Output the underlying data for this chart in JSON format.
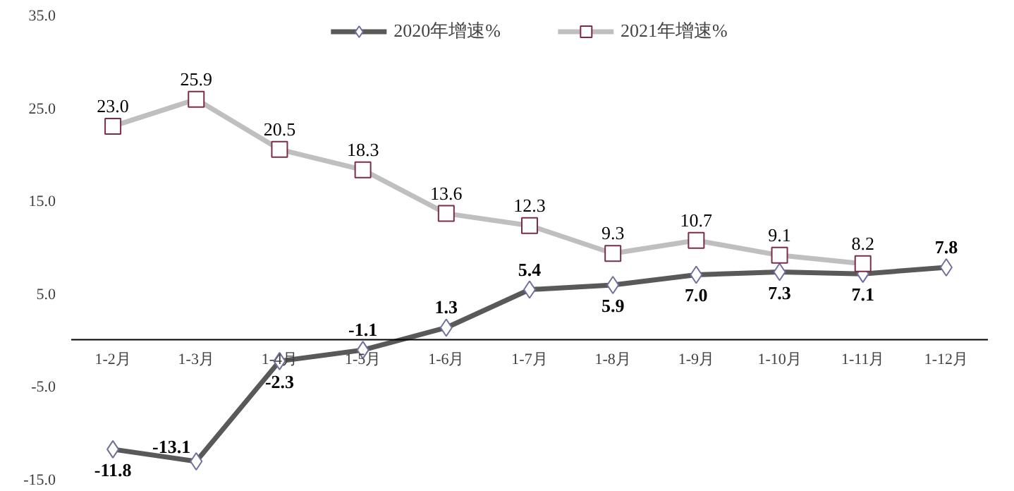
{
  "chart_data": {
    "type": "line",
    "categories": [
      "1-2月",
      "1-3月",
      "1-4月",
      "1-5月",
      "1-6月",
      "1-7月",
      "1-8月",
      "1-9月",
      "1-10月",
      "1-11月",
      "1-12月"
    ],
    "series": [
      {
        "name": "2020年增速%",
        "color": "#595959",
        "marker": "diamond",
        "values": [
          -11.8,
          -13.1,
          -2.3,
          -1.1,
          1.3,
          5.4,
          5.9,
          7.0,
          7.3,
          7.1,
          7.8
        ],
        "value_labels": [
          "-11.8",
          "-13.1",
          "-2.3",
          "-1.1",
          "1.3",
          "5.4",
          "5.9",
          "7.0",
          "7.3",
          "7.1",
          "7.8"
        ]
      },
      {
        "name": "2021年增速%",
        "color": "#bfbfbf",
        "marker": "square",
        "values": [
          23.0,
          25.9,
          20.5,
          18.3,
          13.6,
          12.3,
          9.3,
          10.7,
          9.1,
          8.2,
          null
        ],
        "value_labels": [
          "23.0",
          "25.9",
          "20.5",
          "18.3",
          "13.6",
          "12.3",
          "9.3",
          "10.7",
          "9.1",
          "8.2",
          null
        ]
      }
    ],
    "ylim": [
      -15,
      35
    ],
    "yticks": [
      {
        "value": -15,
        "label": "-15.0"
      },
      {
        "value": -5,
        "label": "-5.0"
      },
      {
        "value": 5,
        "label": "5.0"
      },
      {
        "value": 15,
        "label": "15.0"
      },
      {
        "value": 25,
        "label": "25.0"
      },
      {
        "value": 35,
        "label": "35.0"
      }
    ],
    "legend": "top",
    "grid": false
  }
}
